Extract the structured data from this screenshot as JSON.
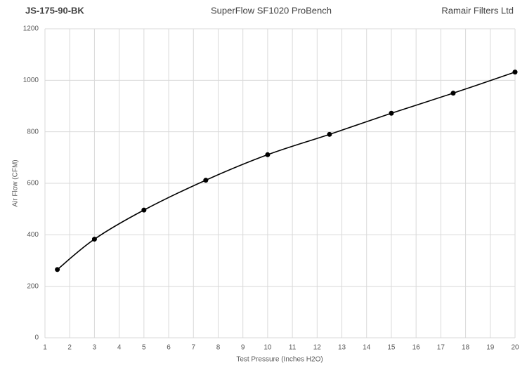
{
  "chart_data": {
    "type": "line",
    "header_left": "JS-175-90-BK",
    "title": "SuperFlow SF1020 ProBench",
    "header_right": "Ramair Filters Ltd",
    "x_label": "Test Pressure (Inches H2O)",
    "y_label": "Air Flow (CFM)",
    "x": [
      1.5,
      3,
      5,
      7.5,
      10,
      12.5,
      15,
      17.5,
      20
    ],
    "series": [
      {
        "name": "Air Flow",
        "color": "#000000",
        "values": [
          265,
          383,
          496,
          612,
          711,
          790,
          872,
          950,
          1032
        ]
      }
    ],
    "xlim": [
      1,
      20
    ],
    "xticks": [
      1,
      2,
      3,
      4,
      5,
      6,
      7,
      8,
      9,
      10,
      11,
      12,
      13,
      14,
      15,
      16,
      17,
      18,
      19,
      20
    ],
    "ylim": [
      0,
      1200
    ],
    "yticks": [
      0,
      200,
      400,
      600,
      800,
      1000,
      1200
    ],
    "grid": true,
    "smooth": true
  }
}
